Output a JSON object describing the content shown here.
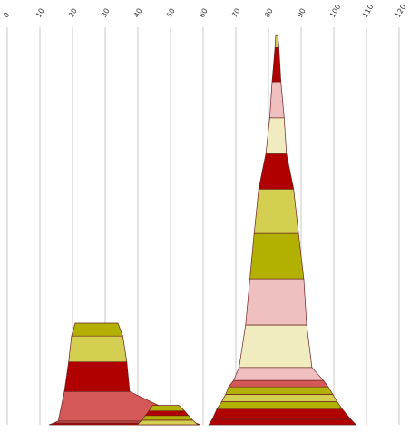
{
  "chart_data": {
    "type": "area",
    "description_style": "stacked trapezoid peaks",
    "x_ticks": [
      "0",
      "10",
      "20",
      "30",
      "40",
      "50",
      "60",
      "70",
      "80",
      "90",
      "100",
      "110",
      "120"
    ],
    "xlim": [
      0,
      120
    ],
    "ylim": [
      0,
      430
    ],
    "grid": true,
    "legend": "none",
    "peaks": [
      {
        "base": [
          12.8,
          59.2
        ],
        "segments": [
          {
            "color": "#b00000",
            "height": 2,
            "top": [
              14.3,
              57.7
            ]
          },
          {
            "color": "#d55858",
            "height": 2,
            "top": [
              15.6,
              56.4
            ]
          },
          {
            "color": "#d55858",
            "height": 32,
            "top": [
              17.5,
              37.5
            ]
          },
          {
            "color": "#b00000",
            "height": 32,
            "top": [
              18.8,
              36.6
            ]
          },
          {
            "color": "#d4cf50",
            "height": 28,
            "top": [
              19.7,
              35.4
            ]
          },
          {
            "color": "#b2b000",
            "height": 14,
            "top": [
              20.8,
              33.9
            ]
          }
        ]
      },
      {
        "base": [
          39.8,
          58.4
        ],
        "segments": [
          {
            "color": "#d4cf50",
            "height": 5,
            "top": [
              41.2,
              56.8
            ]
          },
          {
            "color": "#b2b000",
            "height": 5,
            "top": [
              42.3,
              55.5
            ]
          },
          {
            "color": "#b00000",
            "height": 5,
            "top": [
              43.4,
              54.3
            ]
          },
          {
            "color": "#b2b000",
            "height": 6,
            "top": [
              44.5,
              52.6
            ]
          }
        ]
      },
      {
        "base": [
          61.7,
          106.8
        ],
        "segments": [
          {
            "color": "#b00000",
            "height": 6,
            "top": [
              62.8,
              105.2
            ]
          },
          {
            "color": "#b00000",
            "height": 11,
            "top": [
              64.2,
              102.6
            ]
          },
          {
            "color": "#b2b000",
            "height": 8,
            "top": [
              65.7,
              101.0
            ]
          },
          {
            "color": "#d4cf50",
            "height": 8,
            "top": [
              66.9,
              99.7
            ]
          },
          {
            "color": "#b2b000",
            "height": 8,
            "top": [
              67.8,
              98.3
            ]
          },
          {
            "color": "#d55858",
            "height": 7,
            "top": [
              69.3,
              96.8
            ]
          },
          {
            "color": "#f0c0c0",
            "height": 14,
            "top": [
              71.0,
              93.3
            ]
          },
          {
            "color": "#f0ecc0",
            "height": 46,
            "top": [
              73.0,
              91.7
            ]
          },
          {
            "color": "#f0c0c0",
            "height": 50,
            "top": [
              74.3,
              90.8
            ]
          },
          {
            "color": "#b2b000",
            "height": 49,
            "top": [
              75.6,
              89.2
            ]
          },
          {
            "color": "#d4cf50",
            "height": 48,
            "top": [
              77.0,
              87.7
            ]
          },
          {
            "color": "#b00000",
            "height": 38,
            "top": [
              79.2,
              85.5
            ]
          },
          {
            "color": "#f0ecc0",
            "height": 39,
            "top": [
              80.4,
              84.8
            ]
          },
          {
            "color": "#f0c0c0",
            "height": 39,
            "top": [
              81.1,
              83.8
            ]
          },
          {
            "color": "#b00000",
            "height": 37,
            "top": [
              82.0,
              83.2
            ]
          },
          {
            "color": "#d4cf50",
            "height": 13,
            "top": [
              82.2,
              82.9
            ]
          }
        ]
      }
    ]
  }
}
